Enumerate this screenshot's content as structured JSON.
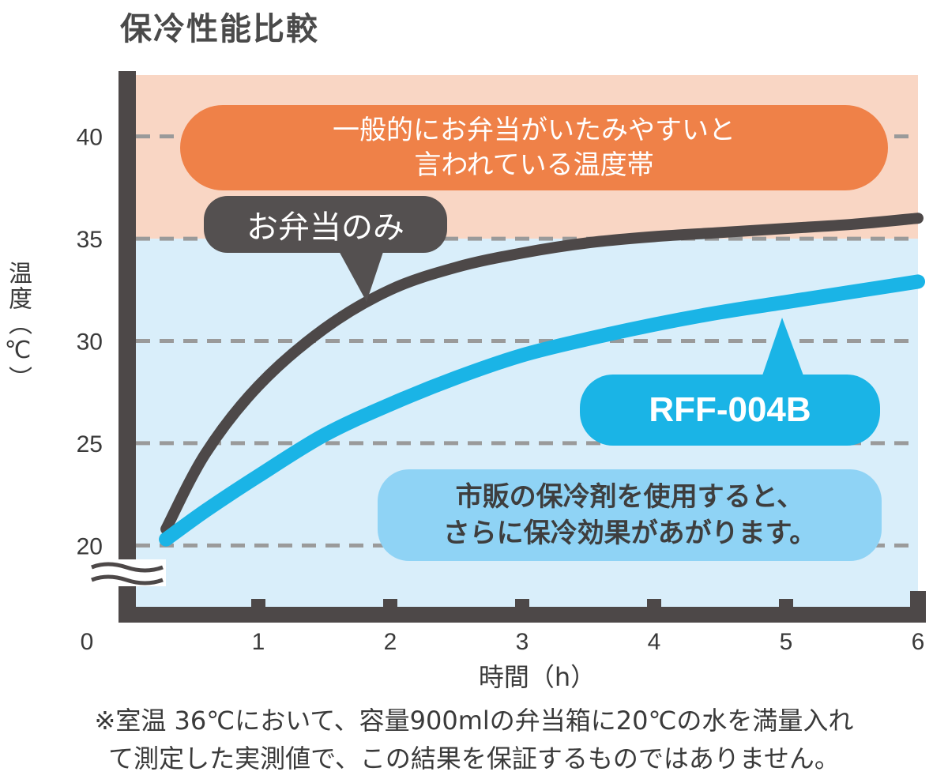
{
  "chart_data": {
    "type": "line",
    "title": "保冷性能比較",
    "xlabel": "時間（h）",
    "ylabel": "温度（℃）",
    "xlim": [
      0,
      6
    ],
    "ylim": [
      17,
      43
    ],
    "x_ticks": [
      "0",
      "1",
      "2",
      "3",
      "4",
      "5",
      "6"
    ],
    "y_ticks": [
      "20",
      "25",
      "30",
      "35",
      "40"
    ],
    "grid": "dashed horizontal",
    "axis_break": true,
    "bands": [
      {
        "from": 35,
        "to": 43,
        "color": "#f9d6c4"
      },
      {
        "from": 17,
        "to": 35,
        "color": "#d9eefa"
      }
    ],
    "series": [
      {
        "name": "お弁当のみ",
        "color": "#4d4848",
        "x": [
          0.3,
          0.6,
          1,
          1.5,
          2,
          2.5,
          3,
          3.5,
          4,
          4.5,
          5,
          5.5,
          6
        ],
        "y": [
          20.8,
          24.5,
          27.8,
          30.6,
          32.5,
          33.6,
          34.3,
          34.8,
          35.1,
          35.3,
          35.5,
          35.7,
          36
        ]
      },
      {
        "name": "RFF-004B",
        "color": "#1ab4e6",
        "x": [
          0.3,
          0.6,
          1,
          1.5,
          2,
          2.5,
          3,
          3.5,
          4,
          4.5,
          5,
          5.5,
          6
        ],
        "y": [
          20.3,
          21.7,
          23.4,
          25.4,
          26.9,
          28.2,
          29.3,
          30.1,
          30.8,
          31.4,
          31.9,
          32.4,
          32.9
        ]
      }
    ],
    "annotations": [
      {
        "text": [
          "一般的にお弁当がいたみやすいと",
          "言われている温度帯"
        ],
        "color": "#ef8148"
      },
      {
        "text": [
          "お弁当のみ"
        ],
        "color": "#545050"
      },
      {
        "text": [
          "RFF-004B"
        ],
        "color": "#1ab4e6"
      },
      {
        "text": [
          "市販の保冷剤を使用すると、",
          "さらに保冷効果があがります。"
        ],
        "color": "#8fd3f5"
      }
    ]
  },
  "footnote": [
    "※室温 36℃において、容量900mlの弁当箱に20℃の水を満量入れ",
    "て測定した実測値で、この結果を保証するものではありません。"
  ]
}
